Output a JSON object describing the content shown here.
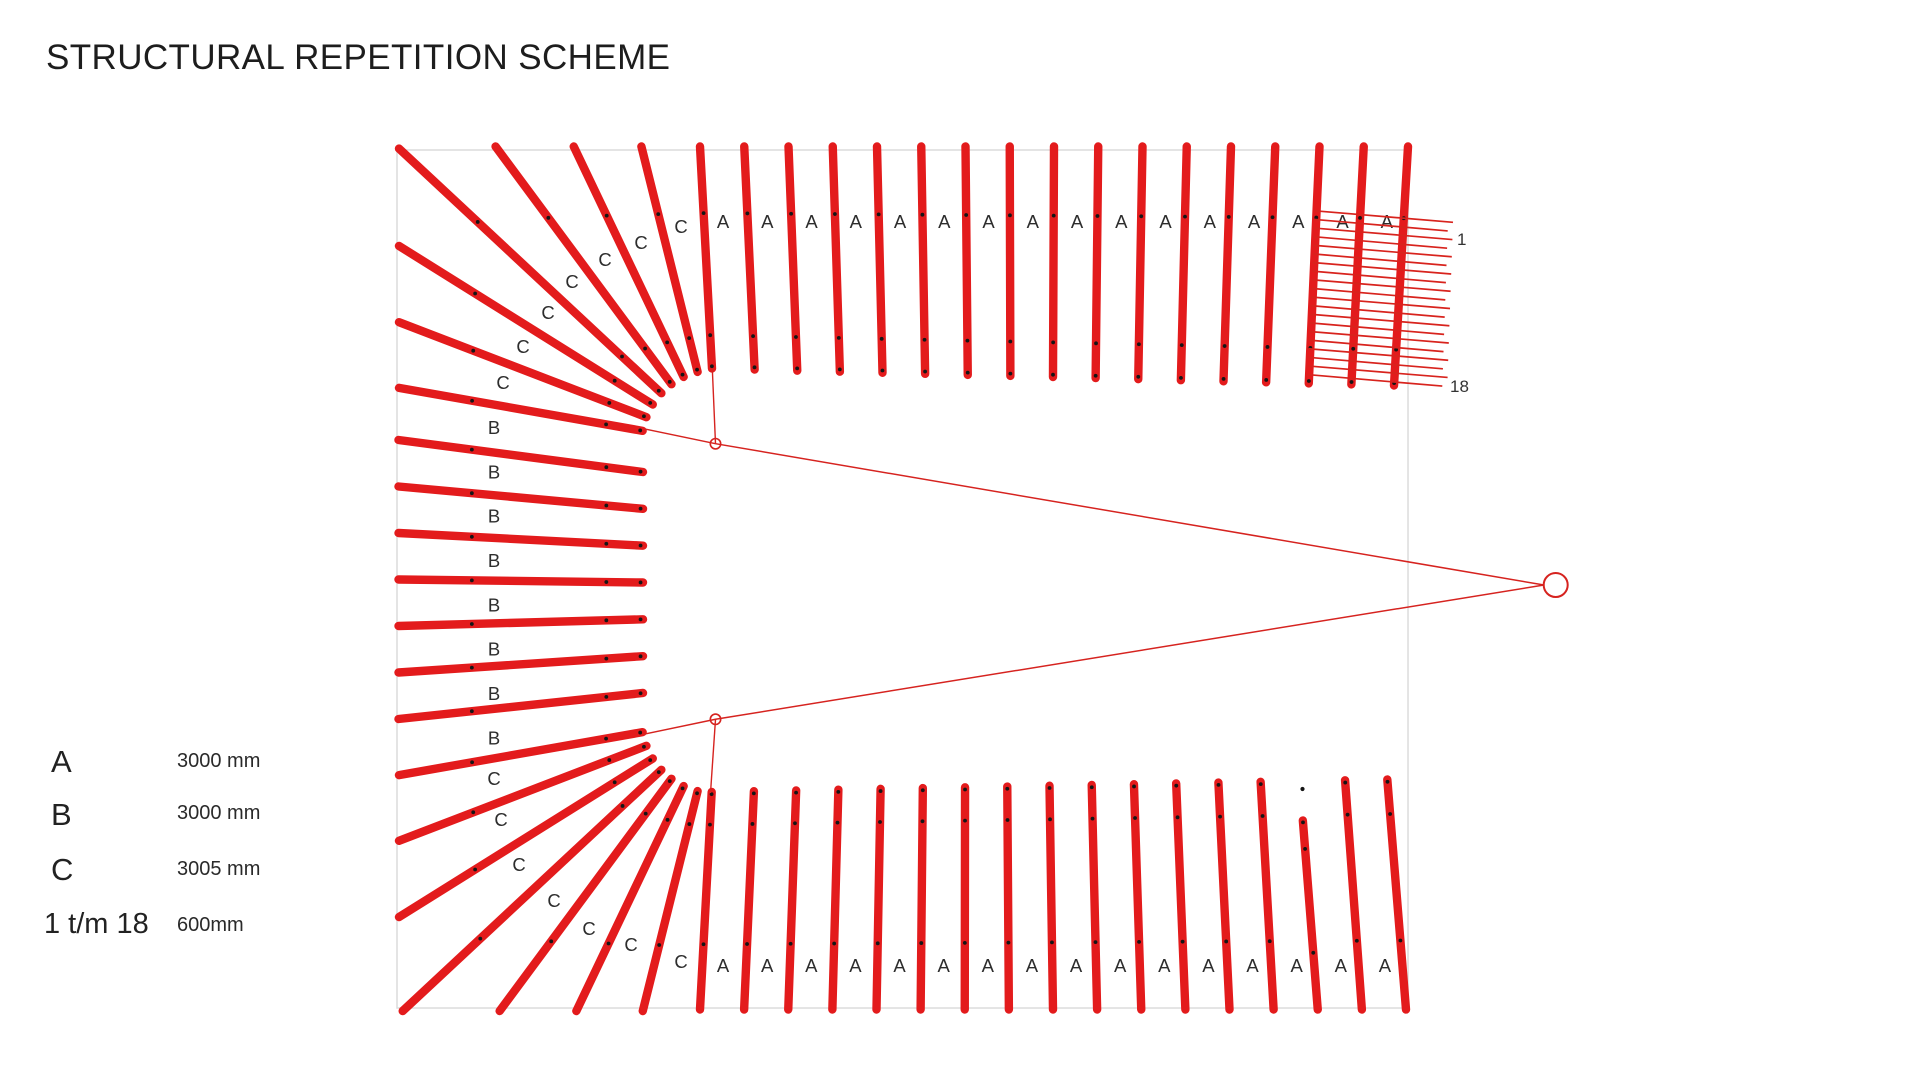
{
  "title": "STRUCTURAL REPETITION SCHEME",
  "legend": {
    "items": [
      {
        "symbol": "A",
        "value": "3000 mm"
      },
      {
        "symbol": "B",
        "value": "3000 mm"
      },
      {
        "symbol": "C",
        "value": "3005 mm"
      },
      {
        "symbol": "1 t/m 18",
        "value": "600mm"
      }
    ]
  },
  "diagram": {
    "labels": {
      "rafter_top": "A",
      "rafter_bottom": "A",
      "edge_rafter": "B",
      "corner_rafter": "C",
      "batten_first": "1",
      "batten_last": "18"
    },
    "counts": {
      "top_rafters": 17,
      "bottom_rafters": 17,
      "top_labels": 16,
      "bottom_labels": 16,
      "edge_rafters": 7,
      "edge_labels": 8,
      "corner_rafters_per_fan": 7,
      "batten_lines": 20
    },
    "colors": {
      "rafter_red": "#e31b1c",
      "line_red": "#d6231f",
      "batten_red": "#d8231d",
      "outline_gray": "#dcdcdc",
      "dot_black": "#151515",
      "label_text": "#2d2d2d"
    }
  }
}
